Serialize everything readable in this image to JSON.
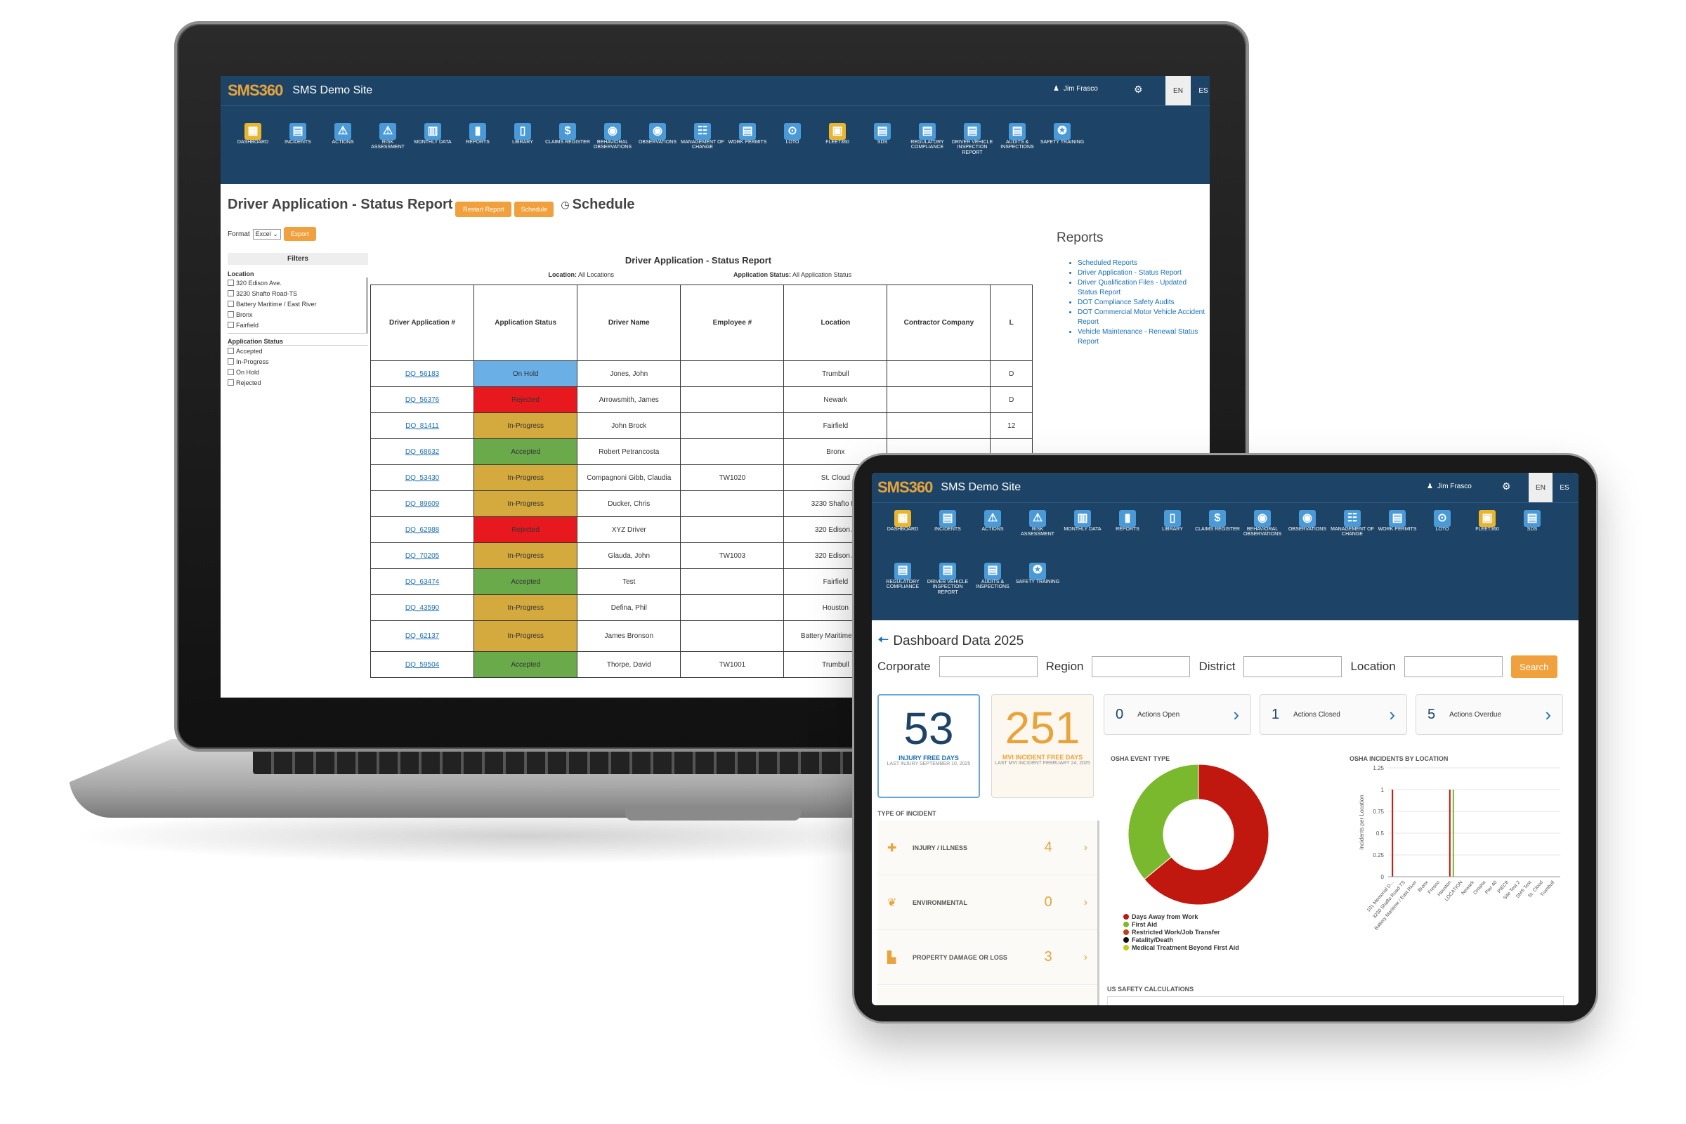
{
  "laptop": {
    "brand": "SMS360",
    "site_name": "SMS Demo Site",
    "user_name": "Jim Frasco",
    "lang_en": "EN",
    "lang_es": "ES",
    "nav": [
      {
        "label": "DASHBOARD",
        "icon": "dashboard-icon"
      },
      {
        "label": "INCIDENTS",
        "icon": "clipboard-icon"
      },
      {
        "label": "ACTIONS",
        "icon": "warning-icon"
      },
      {
        "label": "RISK ASSESSMENT",
        "icon": "warning-icon"
      },
      {
        "label": "MONTHLY DATA",
        "icon": "calendar-icon"
      },
      {
        "label": "REPORTS",
        "icon": "bar-chart-icon"
      },
      {
        "label": "LIBRARY",
        "icon": "book-icon"
      },
      {
        "label": "CLAIMS REGISTER",
        "icon": "dollar-icon"
      },
      {
        "label": "BEHAVIORAL OBSERVATIONS",
        "icon": "eye-icon"
      },
      {
        "label": "OBSERVATIONS",
        "icon": "eye-icon"
      },
      {
        "label": "MANAGEMENT OF CHANGE",
        "icon": "people-icon"
      },
      {
        "label": "WORK PERMITS",
        "icon": "document-icon"
      },
      {
        "label": "LOTO",
        "icon": "lock-icon"
      },
      {
        "label": "FLEET360",
        "icon": "truck-icon"
      },
      {
        "label": "SDS",
        "icon": "document-icon"
      },
      {
        "label": "REGULATORY COMPLIANCE",
        "icon": "document-icon"
      },
      {
        "label": "DRIVER VEHICLE INSPECTION REPORT",
        "icon": "document-icon"
      },
      {
        "label": "AUDITS & INSPECTIONS",
        "icon": "clipboard-icon"
      },
      {
        "label": "SAFETY TRAINING",
        "icon": "training-icon"
      }
    ],
    "page_title": "Driver Application - Status Report",
    "restart_label": "Restart Report",
    "schedule_btn": "Schedule",
    "schedule_link": "Schedule",
    "format_label": "Format",
    "format_value": "Excel",
    "export_label": "Export",
    "filters_title": "Filters",
    "location_title": "Location",
    "locations": [
      "320 Edison Ave.",
      "3230 Shafto Road-TS",
      "Battery Maritime / East River",
      "Bronx",
      "Fairfield"
    ],
    "status_title": "Application Status",
    "statuses": [
      "Accepted",
      "In-Progress",
      "On Hold",
      "Rejected"
    ],
    "report_heading": "Driver Application - Status Report",
    "location_meta_label": "Location:",
    "location_meta_value": "All Locations",
    "status_meta_label": "Application Status:",
    "status_meta_value": "All Application Status",
    "columns": [
      "Driver Application #",
      "Application Status",
      "Driver Name",
      "Employee #",
      "Location",
      "Contractor Company",
      "L"
    ],
    "rows": [
      {
        "id": "DQ_56183",
        "status": "On Hold",
        "cls": "s-hold",
        "name": "Jones, John",
        "emp": "",
        "loc": "Trumbull",
        "last": "D"
      },
      {
        "id": "DQ_56376",
        "status": "Rejected",
        "cls": "s-rej",
        "name": "Arrowsmith, James",
        "emp": "",
        "loc": "Newark",
        "last": "D"
      },
      {
        "id": "DQ_81411",
        "status": "In-Progress",
        "cls": "s-prog",
        "name": "John Brock",
        "emp": "",
        "loc": "Fairfield",
        "last": "12"
      },
      {
        "id": "DQ_68632",
        "status": "Accepted",
        "cls": "s-acc",
        "name": "Robert Petrancosta",
        "emp": "",
        "loc": "Bronx",
        "last": ""
      },
      {
        "id": "DQ_53430",
        "status": "In-Progress",
        "cls": "s-prog",
        "name": "Compagnoni Gibb, Claudia",
        "emp": "TW1020",
        "loc": "St. Cloud",
        "last": ""
      },
      {
        "id": "DQ_89609",
        "status": "In-Progress",
        "cls": "s-prog",
        "name": "Ducker, Chris",
        "emp": "",
        "loc": "3230 Shafto Ro",
        "last": ""
      },
      {
        "id": "DQ_62988",
        "status": "Rejected",
        "cls": "s-rej",
        "name": "XYZ Driver",
        "emp": "",
        "loc": "320 Edison A",
        "last": ""
      },
      {
        "id": "DQ_70205",
        "status": "In-Progress",
        "cls": "s-prog",
        "name": "Glauda, John",
        "emp": "TW1003",
        "loc": "320 Edison A",
        "last": ""
      },
      {
        "id": "DQ_63474",
        "status": "Accepted",
        "cls": "s-acc",
        "name": "Test",
        "emp": "",
        "loc": "Fairfield",
        "last": ""
      },
      {
        "id": "DQ_43590",
        "status": "In-Progress",
        "cls": "s-prog",
        "name": "Defina, Phil",
        "emp": "",
        "loc": "Houston",
        "last": ""
      },
      {
        "id": "DQ_62137",
        "status": "In-Progress",
        "cls": "s-prog",
        "name": "James Bronson",
        "emp": "",
        "loc": "Battery Maritime River",
        "last": ""
      },
      {
        "id": "DQ_59504",
        "status": "Accepted",
        "cls": "s-acc",
        "name": "Thorpe, David",
        "emp": "TW1001",
        "loc": "Trumbull",
        "last": ""
      }
    ],
    "reports_title": "Reports",
    "reports": [
      "Scheduled Reports",
      "Driver Application - Status Report",
      "Driver Qualification Files - Updated Status Report",
      "DOT Compliance Safety Audits",
      "DOT Commercial Motor Vehicle Accident Report",
      "Vehicle Maintenance - Renewal Status Report"
    ]
  },
  "tablet": {
    "brand": "SMS360",
    "site_name": "SMS Demo Site",
    "user_name": "Jim Frasco",
    "lang_en": "EN",
    "lang_es": "ES",
    "nav": [
      {
        "label": "DASHBOARD",
        "icon": "dashboard-icon"
      },
      {
        "label": "INCIDENTS",
        "icon": "clipboard-icon"
      },
      {
        "label": "ACTIONS",
        "icon": "warning-icon"
      },
      {
        "label": "RISK ASSESSMENT",
        "icon": "warning-icon"
      },
      {
        "label": "MONTHLY DATA",
        "icon": "calendar-icon"
      },
      {
        "label": "REPORTS",
        "icon": "bar-chart-icon"
      },
      {
        "label": "LIBRARY",
        "icon": "book-icon"
      },
      {
        "label": "CLAIMS REGISTER",
        "icon": "dollar-icon"
      },
      {
        "label": "BEHAVIORAL OBSERVATIONS",
        "icon": "eye-icon"
      },
      {
        "label": "OBSERVATIONS",
        "icon": "eye-icon"
      },
      {
        "label": "MANAGEMENT OF CHANGE",
        "icon": "people-icon"
      },
      {
        "label": "WORK PERMITS",
        "icon": "document-icon"
      },
      {
        "label": "LOTO",
        "icon": "lock-icon"
      },
      {
        "label": "FLEET360",
        "icon": "truck-icon"
      },
      {
        "label": "SDS",
        "icon": "document-icon"
      },
      {
        "label": "REGULATORY COMPLIANCE",
        "icon": "document-icon"
      },
      {
        "label": "DRIVER VEHICLE INSPECTION REPORT",
        "icon": "document-icon"
      },
      {
        "label": "AUDITS & INSPECTIONS",
        "icon": "clipboard-icon"
      },
      {
        "label": "SAFETY TRAINING",
        "icon": "training-icon"
      }
    ],
    "page_title": "Dashboard Data 2025",
    "filter_corporate": "Corporate",
    "filter_region": "Region",
    "filter_district": "District",
    "filter_location": "Location",
    "search_label": "Search",
    "kpi1_value": "53",
    "kpi1_label": "INJURY FREE DAYS",
    "kpi1_sub": "LAST INJURY SEPTEMBER 10, 2025",
    "kpi2_value": "251",
    "kpi2_label": "MVI INCIDENT FREE DAYS",
    "kpi2_sub": "LAST MVI INCIDENT FEBRUARY 24, 2025",
    "actions": [
      {
        "count": "0",
        "label": "Actions Open"
      },
      {
        "count": "1",
        "label": "Actions Closed"
      },
      {
        "count": "5",
        "label": "Actions Overdue"
      }
    ],
    "type_title": "TYPE OF INCIDENT",
    "types": [
      {
        "label": "INJURY / ILLNESS",
        "count": "4",
        "icon": "medkit-icon"
      },
      {
        "label": "ENVIRONMENTAL",
        "count": "0",
        "icon": "leaf-icon"
      },
      {
        "label": "PROPERTY DAMAGE OR LOSS",
        "count": "3",
        "icon": "factory-icon"
      }
    ],
    "osha_title": "OSHA EVENT TYPE",
    "osha_loc_title": "OSHA INCIDENTS BY LOCATION",
    "us_calc_title": "US SAFETY CALCULATIONS"
  },
  "chart_data": [
    {
      "type": "pie",
      "title": "OSHA EVENT TYPE",
      "categories": [
        "Days Away from Work",
        "First Aid",
        "Restricted Work/Job Transfer",
        "Fatality/Death",
        "Medical Treatment Beyond First Aid"
      ],
      "values": [
        64,
        36,
        0,
        0,
        0
      ],
      "colors": [
        "#c0180f",
        "#7ab82e",
        "#b5480f",
        "#111111",
        "#c8c81e"
      ]
    },
    {
      "type": "bar",
      "title": "OSHA INCIDENTS BY LOCATION",
      "ylabel": "Incidents per Location",
      "ylim": [
        0,
        1.25
      ],
      "yticks": [
        "0",
        "0.25",
        "0.5",
        "0.75",
        "1",
        "1.25"
      ],
      "categories": [
        "101 Memorial D...",
        "3230 Shafto Road-TS",
        "Battery Maritime / East River",
        "Bronx",
        "Fresno",
        "Houston",
        "LOCATION",
        "Newark",
        "Omaha",
        "Pier 40",
        "PIEC8",
        "Site Test 2",
        "SMS Test",
        "St. Cloud",
        "Trumbull"
      ],
      "series": [
        {
          "name": "Days Away from Work",
          "color": "#c0180f",
          "values": [
            1,
            0,
            0,
            0,
            0,
            1,
            0,
            0,
            0,
            0,
            0,
            0,
            0,
            0,
            0
          ]
        },
        {
          "name": "First Aid",
          "color": "#7ab82e",
          "values": [
            0,
            0,
            0,
            0,
            0,
            1,
            0,
            0,
            0,
            0,
            0,
            0,
            0,
            0,
            0
          ]
        }
      ]
    }
  ]
}
